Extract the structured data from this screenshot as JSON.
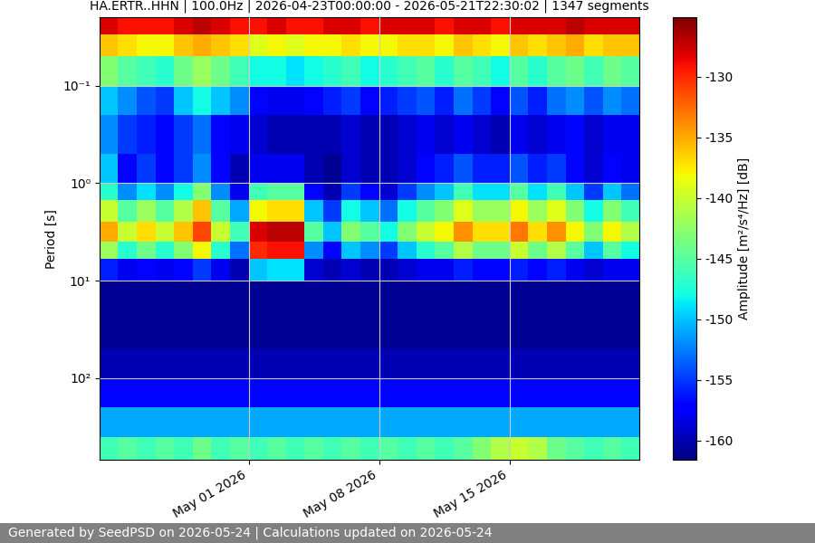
{
  "chart_data": {
    "type": "heatmap",
    "title": "HA.ERTR..HHN | 100.0Hz | 2026-04-23T00:00:00 - 2026-05-21T22:30:02 | 1347 segments",
    "y_label": "Period [s]",
    "footer": "Generated by SeedPSD on 2026-05-24 | Calculations updated on 2026-05-24",
    "log": "y",
    "grid": true,
    "xlim": [
      "2026-04-23T00:00:00",
      "2026-05-21T22:30:02"
    ],
    "xticks": [
      {
        "value": "2026-05-01",
        "label": "May 01 2026"
      },
      {
        "value": "2026-05-08",
        "label": "May 08 2026"
      },
      {
        "value": "2026-05-15",
        "label": "May 15 2026"
      }
    ],
    "ylim": [
      690,
      0.02
    ],
    "yticks": [
      {
        "value": 0.1,
        "label": "10⁻¹"
      },
      {
        "value": 1,
        "label": "10⁰"
      },
      {
        "value": 10,
        "label": "10¹"
      },
      {
        "value": 100,
        "label": "10²"
      }
    ],
    "x_edges": [
      "2026-04-23",
      "2026-04-24",
      "2026-04-25",
      "2026-04-26",
      "2026-04-27",
      "2026-04-28",
      "2026-04-29",
      "2026-04-30",
      "2026-05-01",
      "2026-05-02",
      "2026-05-03",
      "2026-05-04",
      "2026-05-05",
      "2026-05-06",
      "2026-05-07",
      "2026-05-08",
      "2026-05-09",
      "2026-05-10",
      "2026-05-11",
      "2026-05-12",
      "2026-05-13",
      "2026-05-14",
      "2026-05-15",
      "2026-05-16",
      "2026-05-17",
      "2026-05-18",
      "2026-05-19",
      "2026-05-20",
      "2026-05-21",
      "2026-05-22"
    ],
    "y_edges": [
      0.02,
      0.03,
      0.05,
      0.1,
      0.2,
      0.5,
      1,
      1.5,
      2.5,
      4,
      6,
      10,
      20,
      50,
      100,
      200,
      400,
      690
    ],
    "cells": [
      [
        -128,
        -129,
        -129,
        -129,
        -128,
        -127,
        -128,
        -129,
        -129,
        -128,
        -129,
        -129,
        -128,
        -128,
        -129,
        -128,
        -128,
        -128,
        -129,
        -128,
        -128,
        -129,
        -128,
        -128,
        -128,
        -127,
        -128,
        -128,
        -128
      ],
      [
        -136,
        -137,
        -138,
        -138,
        -136,
        -135,
        -136,
        -137,
        -139,
        -138,
        -139,
        -138,
        -138,
        -137,
        -138,
        -138,
        -137,
        -137,
        -138,
        -136,
        -137,
        -138,
        -136,
        -137,
        -136,
        -135,
        -137,
        -136,
        -136
      ],
      [
        -143,
        -145,
        -146,
        -147,
        -144,
        -142,
        -144,
        -146,
        -148,
        -148,
        -149,
        -148,
        -147,
        -146,
        -148,
        -147,
        -146,
        -145,
        -147,
        -145,
        -146,
        -148,
        -145,
        -147,
        -145,
        -144,
        -146,
        -144,
        -145
      ],
      [
        -150,
        -152,
        -154,
        -155,
        -150,
        -148,
        -150,
        -152,
        -157,
        -158,
        -158,
        -157,
        -156,
        -155,
        -157,
        -156,
        -155,
        -154,
        -156,
        -153,
        -155,
        -157,
        -154,
        -156,
        -153,
        -152,
        -154,
        -152,
        -153
      ],
      [
        -152,
        -155,
        -156,
        -157,
        -155,
        -153,
        -157,
        -158,
        -159,
        -160,
        -160,
        -160,
        -160,
        -159,
        -160,
        -160,
        -159,
        -158,
        -159,
        -158,
        -159,
        -160,
        -158,
        -159,
        -158,
        -157,
        -159,
        -158,
        -158
      ],
      [
        -150,
        -157,
        -155,
        -157,
        -155,
        -152,
        -157,
        -160,
        -158,
        -158,
        -158,
        -160,
        -161,
        -159,
        -160,
        -160,
        -159,
        -157,
        -156,
        -154,
        -156,
        -156,
        -154,
        -156,
        -155,
        -157,
        -159,
        -157,
        -158
      ],
      [
        -147,
        -152,
        -149,
        -152,
        -148,
        -143,
        -152,
        -158,
        -146,
        -145,
        -145,
        -157,
        -160,
        -155,
        -157,
        -159,
        -155,
        -152,
        -150,
        -146,
        -149,
        -149,
        -145,
        -149,
        -146,
        -150,
        -155,
        -150,
        -153
      ],
      [
        -140,
        -145,
        -142,
        -145,
        -141,
        -136,
        -145,
        -151,
        -138,
        -137,
        -137,
        -150,
        -155,
        -148,
        -150,
        -153,
        -148,
        -145,
        -143,
        -139,
        -142,
        -142,
        -138,
        -142,
        -139,
        -143,
        -148,
        -143,
        -146
      ],
      [
        -135,
        -140,
        -137,
        -140,
        -136,
        -131,
        -140,
        -146,
        -128,
        -127,
        -127,
        -145,
        -150,
        -143,
        -145,
        -148,
        -143,
        -140,
        -138,
        -134,
        -137,
        -137,
        -133,
        -137,
        -134,
        -138,
        -143,
        -138,
        -141
      ],
      [
        -142,
        -147,
        -144,
        -147,
        -143,
        -138,
        -147,
        -153,
        -130,
        -129,
        -129,
        -152,
        -157,
        -150,
        -152,
        -155,
        -150,
        -147,
        -145,
        -141,
        -144,
        -144,
        -140,
        -144,
        -141,
        -145,
        -150,
        -145,
        -148
      ],
      [
        -156,
        -158,
        -157,
        -158,
        -157,
        -155,
        -158,
        -160,
        -150,
        -149,
        -149,
        -159,
        -160,
        -159,
        -160,
        -160,
        -159,
        -158,
        -158,
        -156,
        -157,
        -157,
        -156,
        -157,
        -156,
        -158,
        -159,
        -158,
        -158
      ],
      [
        -161,
        -161,
        -161,
        -161,
        -161,
        -161,
        -161,
        -161,
        -161,
        -161,
        -161,
        -161,
        -161,
        -161,
        -161,
        -161,
        -161,
        -161,
        -161,
        -161,
        -161,
        -161,
        -161,
        -161,
        -161,
        -161,
        -161,
        -161,
        -161
      ],
      [
        -161,
        -161,
        -161,
        -161,
        -161,
        -161,
        -161,
        -161,
        -161,
        -161,
        -161,
        -161,
        -161,
        -161,
        -161,
        -161,
        -161,
        -161,
        -161,
        -161,
        -161,
        -161,
        -161,
        -161,
        -161,
        -161,
        -161,
        -161,
        -161
      ],
      [
        -160,
        -160,
        -160,
        -160,
        -160,
        -160,
        -160,
        -160,
        -160,
        -160,
        -160,
        -160,
        -160,
        -160,
        -160,
        -160,
        -160,
        -160,
        -160,
        -160,
        -160,
        -160,
        -160,
        -160,
        -160,
        -160,
        -160,
        -160,
        -160
      ],
      [
        -157,
        -157,
        -157,
        -157,
        -157,
        -157,
        -157,
        -157,
        -157,
        -157,
        -157,
        -157,
        -157,
        -157,
        -157,
        -157,
        -157,
        -157,
        -157,
        -157,
        -157,
        -157,
        -157,
        -157,
        -157,
        -157,
        -157,
        -157,
        -157
      ],
      [
        -151,
        -151,
        -151,
        -151,
        -151,
        -151,
        -151,
        -151,
        -151,
        -151,
        -151,
        -151,
        -151,
        -151,
        -151,
        -151,
        -151,
        -151,
        -151,
        -151,
        -151,
        -151,
        -151,
        -151,
        -151,
        -151,
        -151,
        -151,
        -151
      ],
      [
        -146,
        -145,
        -146,
        -145,
        -146,
        -144,
        -146,
        -145,
        -146,
        -145,
        -146,
        -145,
        -146,
        -145,
        -146,
        -145,
        -146,
        -145,
        -146,
        -145,
        -143,
        -141,
        -140,
        -141,
        -144,
        -145,
        -146,
        -145,
        -146
      ]
    ],
    "colorbar": {
      "label": "Amplitude [m²/s⁴/Hz] [dB]",
      "lim": [
        -161.6,
        -125.1
      ],
      "ticks": [
        -160,
        -155,
        -150,
        -145,
        -140,
        -135,
        -130
      ]
    }
  }
}
